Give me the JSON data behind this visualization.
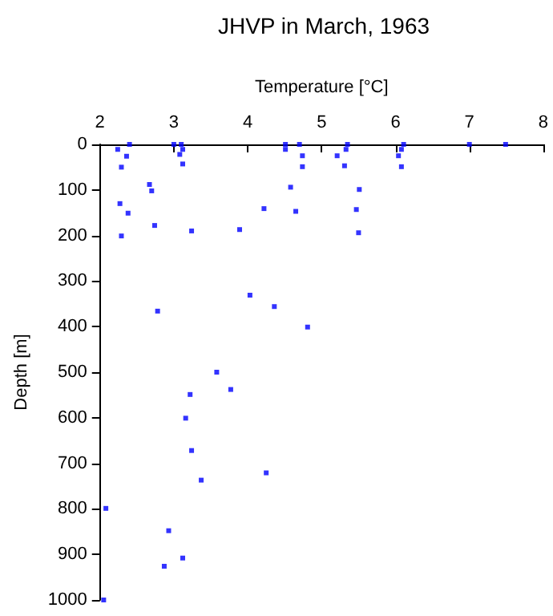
{
  "chart_data": {
    "type": "scatter",
    "title": "JHVP in March, 1963",
    "xlabel": "Temperature [°C]",
    "ylabel": "Depth [m]",
    "x": [
      2.24,
      2.4,
      2.36,
      2.29,
      3.0,
      3.1,
      3.12,
      3.08,
      3.12,
      4.51,
      4.51,
      4.7,
      4.74,
      4.74,
      5.21,
      5.31,
      5.33,
      5.35,
      6.04,
      6.08,
      6.08,
      6.11,
      7.0,
      7.49,
      2.67,
      2.7,
      2.27,
      2.38,
      2.29,
      2.74,
      3.24,
      3.89,
      4.22,
      4.58,
      4.65,
      5.51,
      5.47,
      5.5,
      4.03,
      4.36,
      2.78,
      4.81,
      3.58,
      3.77,
      3.22,
      3.16,
      3.24,
      4.25,
      3.37,
      2.08,
      2.93,
      3.12,
      2.87,
      2.05
    ],
    "series": [
      {
        "color": "#0000ff",
        "values": [
          11,
          0,
          26,
          50,
          0,
          0,
          11,
          22,
          43,
          11,
          0,
          0,
          25,
          49,
          25,
          47,
          11,
          0,
          25,
          49,
          11,
          0,
          0,
          0,
          88,
          102,
          130,
          151,
          201,
          178,
          190,
          187,
          141,
          94,
          147,
          99,
          143,
          194,
          331,
          356,
          366,
          401,
          500,
          538,
          549,
          601,
          672,
          721,
          737,
          799,
          848,
          908,
          926,
          1000
        ]
      }
    ],
    "xlim": [
      2,
      8
    ],
    "xticks": [
      2,
      3,
      4,
      5,
      6,
      7,
      8
    ],
    "ylim": [
      1000,
      0
    ],
    "yticks": [
      0,
      100,
      200,
      300,
      400,
      500,
      600,
      700,
      800,
      900,
      1000
    ],
    "marker": "square",
    "grid": false
  }
}
